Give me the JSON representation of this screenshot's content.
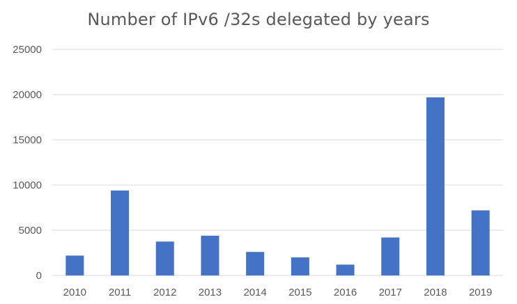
{
  "chart_data": {
    "type": "bar",
    "title": "Number of IPv6 /32s delegated by years",
    "categories": [
      "2010",
      "2011",
      "2012",
      "2013",
      "2014",
      "2015",
      "2016",
      "2017",
      "2018",
      "2019"
    ],
    "values": [
      2200,
      9400,
      3750,
      4400,
      2600,
      2000,
      1200,
      4200,
      19700,
      7200
    ],
    "ylim": [
      0,
      25000
    ],
    "yticks": [
      "0",
      "5000",
      "10000",
      "15000",
      "20000",
      "25000"
    ],
    "grid": true,
    "legend": "none",
    "bar_color": "#4472C4",
    "grid_color": "#D9D9D9"
  }
}
